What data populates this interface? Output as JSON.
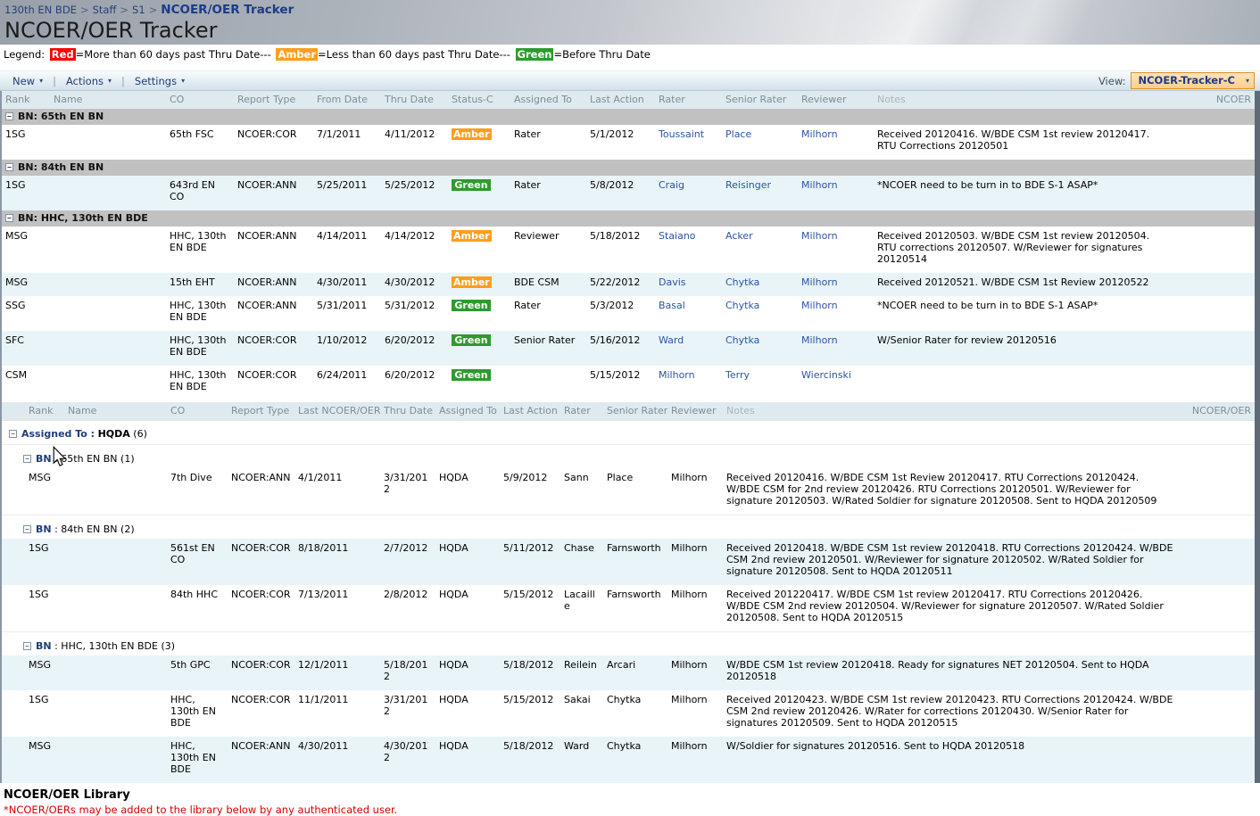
{
  "breadcrumb": {
    "items": [
      "130th EN BDE",
      "Staff",
      "S1"
    ],
    "separator": ">",
    "current": "NCOER/OER Tracker"
  },
  "page_title": "NCOER/OER Tracker",
  "legend": {
    "prefix": "Legend: ",
    "entries": [
      {
        "label": "Red",
        "color": "#ff0000",
        "suffix": "=More than 60 days past Thru Date--- "
      },
      {
        "label": "Amber",
        "color": "#ff9e1b",
        "suffix": "=Less than 60 days past Thru Date--- "
      },
      {
        "label": "Green",
        "color": "#2e9a2e",
        "suffix": "=Before Thru Date"
      }
    ]
  },
  "toolbar": {
    "menus": [
      {
        "label": "New"
      },
      {
        "label": "Actions"
      },
      {
        "label": "Settings"
      }
    ],
    "view_label": "View:",
    "view_value": "NCOER-Tracker-C"
  },
  "icons": {
    "dropdown_arrow": "▾",
    "collapse_minus": "−"
  },
  "colors": {
    "red": "#ff0000",
    "amber": "#ff9e1b",
    "green": "#2e9a2e",
    "link": "#2a55a4"
  },
  "table1": {
    "columns": [
      {
        "label": "Rank"
      },
      {
        "label": "Name"
      },
      {
        "label": "CO"
      },
      {
        "label": "Report Type"
      },
      {
        "label": "From Date"
      },
      {
        "label": "Thru Date"
      },
      {
        "label": "Status-C"
      },
      {
        "label": "Assigned To"
      },
      {
        "label": "Last Action"
      },
      {
        "label": "Rater"
      },
      {
        "label": "Senior Rater"
      },
      {
        "label": "Reviewer"
      },
      {
        "label": "Notes",
        "muted": true
      },
      {
        "label": "NCOER",
        "align": "right"
      }
    ],
    "groups": [
      {
        "label": "BN: 65th EN BN",
        "rows": [
          {
            "rank": "1SG",
            "name": "",
            "co": "65th FSC",
            "report_type": "NCOER:COR",
            "from_date": "7/1/2011",
            "thru_date": "4/11/2012",
            "status": "Amber",
            "assigned_to": "Rater",
            "last_action": "5/1/2012",
            "rater": "Toussaint",
            "senior_rater": "Place",
            "reviewer": "Milhorn",
            "notes": "Received 20120416. W/BDE CSM 1st review 20120417. RTU Corrections 20120501",
            "ncoer": ""
          }
        ]
      },
      {
        "label": "BN: 84th EN BN",
        "rows": [
          {
            "rank": "1SG",
            "name": "",
            "co": "643rd EN CO",
            "report_type": "NCOER:ANN",
            "from_date": "5/25/2011",
            "thru_date": "5/25/2012",
            "status": "Green",
            "assigned_to": "Rater",
            "last_action": "5/8/2012",
            "rater": "Craig",
            "senior_rater": "Reisinger",
            "reviewer": "Milhorn",
            "notes": "*NCOER need to be turn in to BDE S-1 ASAP*",
            "ncoer": ""
          }
        ]
      },
      {
        "label": "BN: HHC, 130th EN BDE",
        "rows": [
          {
            "rank": "MSG",
            "name": "",
            "co": "HHC, 130th EN BDE",
            "report_type": "NCOER:ANN",
            "from_date": "4/14/2011",
            "thru_date": "4/14/2012",
            "status": "Amber",
            "assigned_to": "Reviewer",
            "last_action": "5/18/2012",
            "rater": "Staiano",
            "senior_rater": "Acker",
            "reviewer": "Milhorn",
            "notes": "Received 20120503. W/BDE CSM 1st review 20120504. RTU corrections 20120507. W/Reviewer for signatures 20120514",
            "ncoer": ""
          },
          {
            "rank": "MSG",
            "name": "",
            "co": "15th EHT",
            "report_type": "NCOER:ANN",
            "from_date": "4/30/2011",
            "thru_date": "4/30/2012",
            "status": "Amber",
            "assigned_to": "BDE CSM",
            "last_action": "5/22/2012",
            "rater": "Davis",
            "senior_rater": "Chytka",
            "reviewer": "Milhorn",
            "notes": "Received 20120521. W/BDE CSM 1st Review 20120522",
            "ncoer": ""
          },
          {
            "rank": "SSG",
            "name": "",
            "co": "HHC, 130th EN BDE",
            "report_type": "NCOER:ANN",
            "from_date": "5/31/2011",
            "thru_date": "5/31/2012",
            "status": "Green",
            "assigned_to": "Rater",
            "last_action": "5/3/2012",
            "rater": "Basal",
            "senior_rater": "Chytka",
            "reviewer": "Milhorn",
            "notes": "*NCOER need to be turn in to BDE S-1 ASAP*",
            "ncoer": ""
          },
          {
            "rank": "SFC",
            "name": "",
            "co": "HHC, 130th EN BDE",
            "report_type": "NCOER:COR",
            "from_date": "1/10/2012",
            "thru_date": "6/20/2012",
            "status": "Green",
            "assigned_to": "Senior Rater",
            "last_action": "5/16/2012",
            "rater": "Ward",
            "senior_rater": "Chytka",
            "reviewer": "Milhorn",
            "notes": "W/Senior Rater for review 20120516",
            "ncoer": ""
          },
          {
            "rank": "CSM",
            "name": "",
            "co": "HHC, 130th EN BDE",
            "report_type": "NCOER:COR",
            "from_date": "6/24/2011",
            "thru_date": "6/20/2012",
            "status": "Green",
            "assigned_to": "",
            "last_action": "5/15/2012",
            "rater": "Milhorn",
            "senior_rater": "Terry",
            "reviewer": "Wiercinski",
            "notes": "",
            "ncoer": ""
          }
        ]
      }
    ]
  },
  "table2": {
    "columns": [
      {
        "label": "Rank"
      },
      {
        "label": "Name"
      },
      {
        "label": "CO"
      },
      {
        "label": "Report Type"
      },
      {
        "label": "Last NCOER/OER"
      },
      {
        "label": "Thru Date"
      },
      {
        "label": "Assigned To"
      },
      {
        "label": "Last Action"
      },
      {
        "label": "Rater"
      },
      {
        "label": "Senior Rater"
      },
      {
        "label": "Reviewer"
      },
      {
        "label": "Notes",
        "muted": true
      },
      {
        "label": "NCOER/OER",
        "align": "right"
      }
    ],
    "group": {
      "prefix": "Assigned To :",
      "value": "HQDA",
      "count": "(6)"
    },
    "subgroups": [
      {
        "prefix": "BN",
        "sep": " : ",
        "name": "65th EN BN ",
        "count": "(1)",
        "rows": [
          {
            "rank": "MSG",
            "name": "",
            "co": "7th Dive",
            "report_type": "NCOER:ANN",
            "last_ncoer": "4/1/2011",
            "thru_date": "3/31/2012",
            "assigned_to": "HQDA",
            "last_action": "5/9/2012",
            "rater": "Sann",
            "senior_rater": "Place",
            "reviewer": "Milhorn",
            "notes": "Received 20120416. W/BDE CSM 1st Review 20120417. RTU Corrections 20120424. W/BDE CSM for 2nd review 20120426. RTU Corrections 20120501. W/Reviewer for signature 20120503. W/Rated Soldier for signature 20120508. Sent to HQDA 20120509",
            "ncoer": ""
          }
        ]
      },
      {
        "prefix": "BN",
        "sep": " : ",
        "name": "84th EN BN ",
        "count": "(2)",
        "rows": [
          {
            "rank": "1SG",
            "name": "",
            "co": "561st EN CO",
            "report_type": "NCOER:COR",
            "last_ncoer": "8/18/2011",
            "thru_date": "2/7/2012",
            "assigned_to": "HQDA",
            "last_action": "5/11/2012",
            "rater": "Chase",
            "senior_rater": "Farnsworth",
            "reviewer": "Milhorn",
            "notes": "Received 20120418. W/BDE CSM 1st review 20120418. RTU Corrections 20120424. W/BDE CSM 2nd review 20120501. W/Reviewer for signature 20120502. W/Rated Soldier for signature 20120508. Sent to HQDA 20120511",
            "ncoer": ""
          },
          {
            "rank": "1SG",
            "name": "",
            "co": "84th HHC",
            "report_type": "NCOER:COR",
            "last_ncoer": "7/13/2011",
            "thru_date": "2/8/2012",
            "assigned_to": "HQDA",
            "last_action": "5/15/2012",
            "rater": "Lacaille",
            "senior_rater": "Farnsworth",
            "reviewer": "Milhorn",
            "notes": "Received 201220417. W/BDE CSM 1st review 20120417. RTU Corrections 20120426. W/BDE CSM 2nd review 20120504. W/Reviewer for signature 20120507. W/Rated Soldier 20120508. Sent to HQDA 20120515",
            "ncoer": ""
          }
        ]
      },
      {
        "prefix": "BN",
        "sep": " : ",
        "name": "HHC, 130th EN BDE ",
        "count": "(3)",
        "rows": [
          {
            "rank": "MSG",
            "name": "",
            "co": "5th GPC",
            "report_type": "NCOER:COR",
            "last_ncoer": "12/1/2011",
            "thru_date": "5/18/2012",
            "assigned_to": "HQDA",
            "last_action": "5/18/2012",
            "rater": "Reilein",
            "senior_rater": "Arcari",
            "reviewer": "Milhorn",
            "notes": "W/BDE CSM 1st review 20120418. Ready for signatures NET 20120504. Sent to HQDA 20120518",
            "ncoer": ""
          },
          {
            "rank": "1SG",
            "name": "",
            "co": "HHC, 130th EN BDE",
            "report_type": "NCOER:COR",
            "last_ncoer": "11/1/2011",
            "thru_date": "3/31/2012",
            "assigned_to": "HQDA",
            "last_action": "5/15/2012",
            "rater": "Sakai",
            "senior_rater": "Chytka",
            "reviewer": "Milhorn",
            "notes": "Received 20120423. W/BDE CSM 1st review 20120423. RTU Corrections 20120424. W/BDE CSM 2nd review 20120426. W/Rater for corrections 20120430. W/Senior Rater for signatures 20120509. Sent to HQDA 20120515",
            "ncoer": ""
          },
          {
            "rank": "MSG",
            "name": "",
            "co": "HHC, 130th EN BDE",
            "report_type": "NCOER:ANN",
            "last_ncoer": "4/30/2011",
            "thru_date": "4/30/2012",
            "assigned_to": "HQDA",
            "last_action": "5/18/2012",
            "rater": "Ward",
            "senior_rater": "Chytka",
            "reviewer": "Milhorn",
            "notes": "W/Soldier for signatures 20120516. Sent to HQDA 20120518",
            "ncoer": ""
          }
        ]
      }
    ]
  },
  "library": {
    "title": "NCOER/OER Library",
    "note": "*NCOER/OERs may be added to the library below by any authenticated user."
  }
}
